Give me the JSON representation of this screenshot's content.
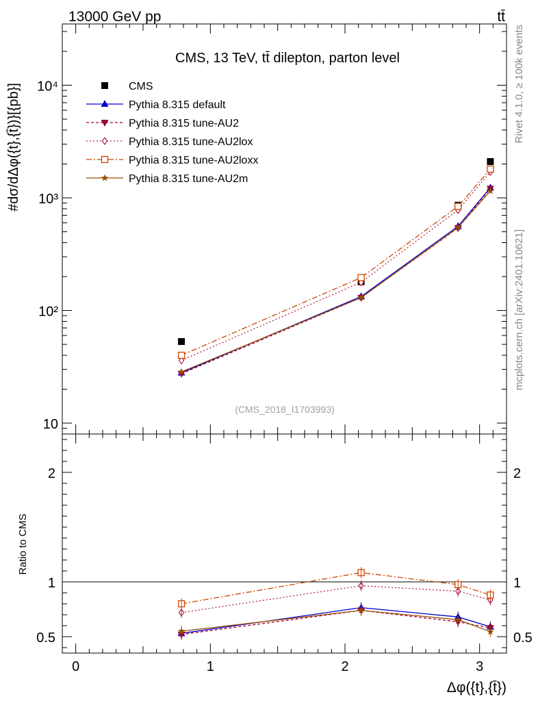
{
  "header": {
    "left": "13000 GeV pp",
    "right": "tt̄"
  },
  "side_labels": {
    "rivet": "Rivet 4.1.0, ≥ 100k events",
    "mcplots": "mcplots.cern.ch [arXiv:2401.10621]"
  },
  "colors": {
    "cms": "#000000",
    "default": "#0000cc",
    "au2": "#990033",
    "au2lox": "#b22244",
    "au2loxx": "#cc4400",
    "au2m": "#994d00"
  },
  "chart_data": [
    {
      "type": "line",
      "title": "CMS, 13 TeV, tt̄ dilepton, parton level",
      "watermark": "(CMS_2018_I1703993)",
      "ylabel": "#dσ/dΔφ({t},{t̄})}[{pb}]",
      "yscale": "log",
      "ylim": [
        8,
        35000
      ],
      "xlim": [
        -0.1,
        3.2
      ],
      "x": [
        0.785,
        2.12,
        2.84,
        3.08
      ],
      "ytick_labels": [
        "10",
        "10²",
        "10³",
        "10⁴"
      ],
      "series": [
        {
          "name": "CMS",
          "key": "cms",
          "marker": "square",
          "values": [
            53,
            180,
            860,
            2100
          ]
        },
        {
          "name": "Pythia 8.315 default",
          "key": "default",
          "marker": "triangle",
          "dash": "",
          "values": [
            28,
            133,
            560,
            1230
          ]
        },
        {
          "name": "Pythia 8.315 tune-AU2",
          "key": "au2",
          "marker": "invtriangle",
          "dash": "4,3",
          "values": [
            27.5,
            130,
            540,
            1210
          ]
        },
        {
          "name": "Pythia 8.315 tune-AU2lox",
          "key": "au2lox",
          "marker": "diamond",
          "dash": "2,3",
          "values": [
            36,
            178,
            780,
            1700
          ]
        },
        {
          "name": "Pythia 8.315 tune-AU2loxx",
          "key": "au2loxx",
          "marker": "opensquare",
          "dash": "8,3,2,3",
          "values": [
            40,
            196,
            840,
            1800
          ]
        },
        {
          "name": "Pythia 8.315 tune-AU2m",
          "key": "au2m",
          "marker": "star",
          "dash": "",
          "values": [
            28.5,
            130,
            545,
            1150
          ]
        }
      ]
    },
    {
      "type": "line",
      "title": "",
      "ylabel": "Ratio to CMS",
      "xlabel": "Δφ({t},{t̄})",
      "ylim": [
        0.35,
        2.35
      ],
      "xlim": [
        -0.1,
        3.2
      ],
      "x": [
        0.785,
        2.12,
        2.84,
        3.08
      ],
      "xtick_labels": [
        "0",
        "1",
        "2",
        "3"
      ],
      "ytick_labels": [
        "0.5",
        "1",
        "2"
      ],
      "reference": 1,
      "series": [
        {
          "name": "Pythia 8.315 default",
          "key": "default",
          "marker": "triangle",
          "dash": "",
          "values": [
            0.53,
            0.765,
            0.68,
            0.59
          ]
        },
        {
          "name": "Pythia 8.315 tune-AU2",
          "key": "au2",
          "marker": "invtriangle",
          "dash": "4,3",
          "values": [
            0.52,
            0.74,
            0.635,
            0.58
          ]
        },
        {
          "name": "Pythia 8.315 tune-AU2lox",
          "key": "au2lox",
          "marker": "diamond",
          "dash": "2,3",
          "values": [
            0.72,
            0.965,
            0.915,
            0.835
          ]
        },
        {
          "name": "Pythia 8.315 tune-AU2loxx",
          "key": "au2loxx",
          "marker": "opensquare",
          "dash": "8,3,2,3",
          "values": [
            0.8,
            1.085,
            0.975,
            0.88
          ]
        },
        {
          "name": "Pythia 8.315 tune-AU2m",
          "key": "au2m",
          "marker": "star",
          "dash": "",
          "values": [
            0.55,
            0.74,
            0.655,
            0.545
          ]
        }
      ]
    }
  ]
}
